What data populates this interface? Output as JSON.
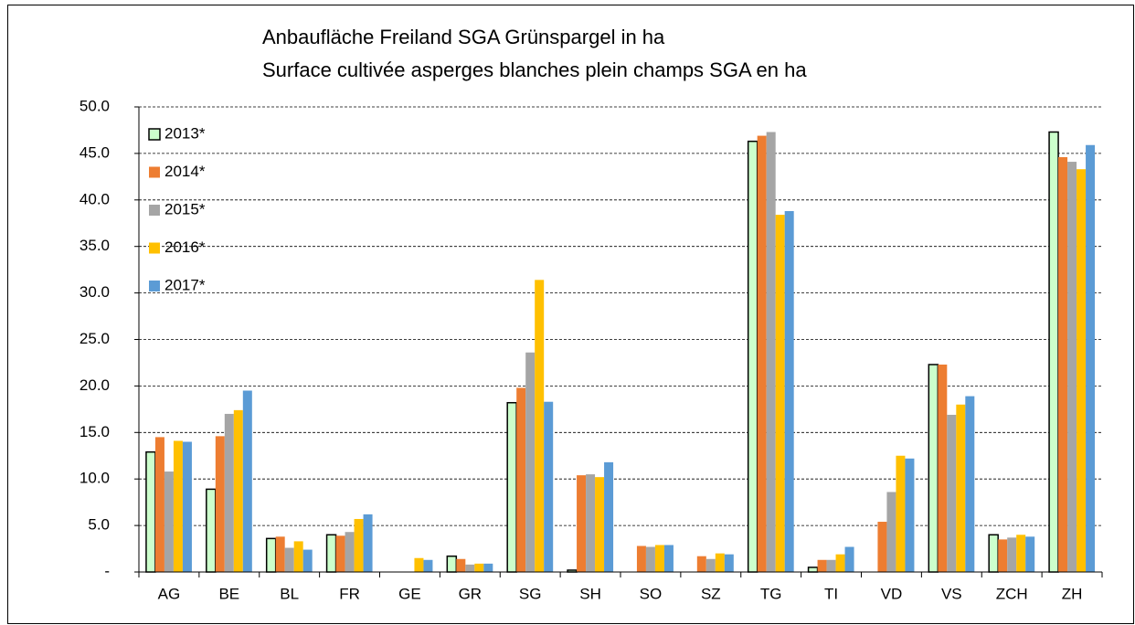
{
  "chart_data": {
    "type": "bar",
    "title": "Anbaufläche Freiland SGA Grünspargel in ha",
    "subtitle": "Surface cultivée asperges blanches plein champs SGA en ha",
    "categories": [
      "AG",
      "BE",
      "BL",
      "FR",
      "GE",
      "GR",
      "SG",
      "SH",
      "SO",
      "SZ",
      "TG",
      "TI",
      "VD",
      "VS",
      "ZCH",
      "ZH"
    ],
    "series": [
      {
        "name": "2013*",
        "color": "#ccffcc",
        "values": [
          12.9,
          8.9,
          3.6,
          4.0,
          0,
          1.7,
          18.2,
          0.2,
          0,
          0,
          46.3,
          0.5,
          0,
          22.3,
          4.0,
          47.3
        ]
      },
      {
        "name": "2014*",
        "color": "#ed7d31",
        "values": [
          14.5,
          14.6,
          3.8,
          3.9,
          0,
          1.4,
          19.8,
          10.4,
          2.8,
          1.7,
          46.9,
          1.3,
          5.4,
          22.3,
          3.5,
          44.6
        ]
      },
      {
        "name": "2015*",
        "color": "#a5a5a5",
        "values": [
          10.8,
          17.0,
          2.6,
          4.3,
          0,
          0.8,
          23.6,
          10.5,
          2.7,
          1.4,
          47.3,
          1.3,
          8.6,
          16.9,
          3.7,
          44.1
        ]
      },
      {
        "name": "2016*",
        "color": "#ffc000",
        "values": [
          14.1,
          17.4,
          3.3,
          5.7,
          1.5,
          0.9,
          31.4,
          10.2,
          2.9,
          2.0,
          38.4,
          1.9,
          12.5,
          18.0,
          4.0,
          43.3
        ]
      },
      {
        "name": "2017*",
        "color": "#5b9bd5",
        "values": [
          14.0,
          19.5,
          2.4,
          6.2,
          1.3,
          0.9,
          18.3,
          11.8,
          2.9,
          1.9,
          38.8,
          2.7,
          12.2,
          18.9,
          3.8,
          45.9
        ]
      }
    ],
    "ylim": [
      0,
      50
    ],
    "yticks": [
      {
        "value": 0,
        "label": "-"
      },
      {
        "value": 5,
        "label": "5.0"
      },
      {
        "value": 10,
        "label": "10.0"
      },
      {
        "value": 15,
        "label": "15.0"
      },
      {
        "value": 20,
        "label": "20.0"
      },
      {
        "value": 25,
        "label": "25.0"
      },
      {
        "value": 30,
        "label": "30.0"
      },
      {
        "value": 35,
        "label": "35.0"
      },
      {
        "value": 40,
        "label": "40.0"
      },
      {
        "value": 45,
        "label": "45.0"
      },
      {
        "value": 50,
        "label": "50.0"
      }
    ],
    "grid": true,
    "legend": "top-left"
  }
}
